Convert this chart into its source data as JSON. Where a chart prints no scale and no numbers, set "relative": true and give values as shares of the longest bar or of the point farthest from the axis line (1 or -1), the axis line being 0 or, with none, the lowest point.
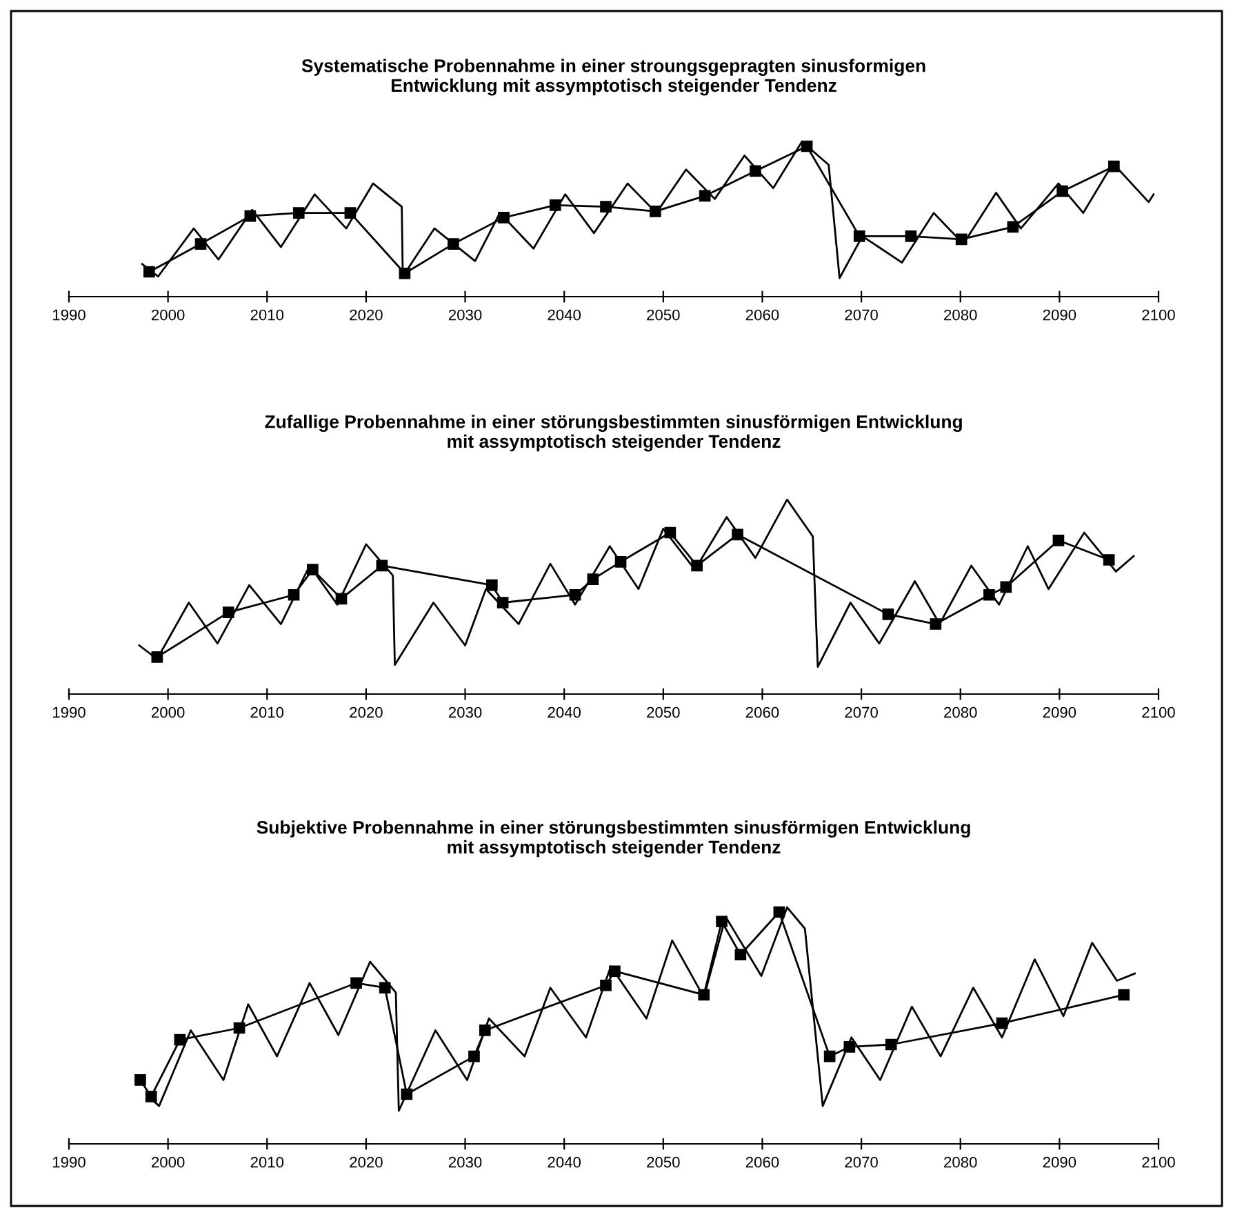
{
  "chart_data": [
    {
      "type": "line",
      "relative": true,
      "title": "Systematische Probennahme in einer stroungsgepragten sinusformigen\nEntwicklung mit assymptotisch steigender Tendenz",
      "xlim": [
        1990,
        2100
      ],
      "xticks": [
        1990,
        2000,
        2010,
        2020,
        2030,
        2040,
        2050,
        2060,
        2070,
        2080,
        2090,
        2100
      ],
      "grid": false,
      "series": [
        {
          "color": "#000000",
          "marker": "none",
          "x": [
            1997.4,
            1999.0,
            2002.6,
            2005.1,
            2008.5,
            2011.4,
            2014.8,
            2018.0,
            2020.7,
            2023.6,
            2023.7,
            2026.9,
            2031.0,
            2033.5,
            2036.9,
            2040.1,
            2043.0,
            2046.4,
            2049.3,
            2052.3,
            2055.2,
            2058.2,
            2061.1,
            2064.0,
            2066.7,
            2067.8,
            2070.1,
            2074.1,
            2077.3,
            2080.3,
            2083.6,
            2086.1,
            2089.9,
            2092.4,
            2095.4,
            2099.0,
            2099.5
          ],
          "values": [
            0.21,
            0.13,
            0.44,
            0.24,
            0.56,
            0.32,
            0.66,
            0.44,
            0.73,
            0.58,
            0.13,
            0.44,
            0.23,
            0.54,
            0.31,
            0.66,
            0.41,
            0.73,
            0.54,
            0.82,
            0.63,
            0.91,
            0.7,
            1.0,
            0.85,
            0.12,
            0.39,
            0.22,
            0.54,
            0.34,
            0.67,
            0.44,
            0.73,
            0.54,
            0.86,
            0.61,
            0.66
          ]
        },
        {
          "color": "#000000",
          "marker": "square",
          "x": [
            1998.1,
            2003.3,
            2008.3,
            2013.2,
            2018.4,
            2023.9,
            2028.8,
            2033.9,
            2039.1,
            2044.2,
            2049.2,
            2054.2,
            2059.3,
            2064.5,
            2069.8,
            2075.0,
            2080.1,
            2085.3,
            2090.3,
            2095.5
          ],
          "values": [
            0.16,
            0.34,
            0.52,
            0.54,
            0.54,
            0.15,
            0.34,
            0.51,
            0.59,
            0.58,
            0.55,
            0.65,
            0.81,
            0.97,
            0.39,
            0.39,
            0.37,
            0.45,
            0.68,
            0.84
          ]
        }
      ]
    },
    {
      "type": "line",
      "relative": true,
      "title": "Zufallige Probennahme in einer störungsbestimmten sinusförmigen Entwicklung\nmit assymptotisch steigender Tendenz",
      "xlim": [
        1990,
        2100
      ],
      "xticks": [
        1990,
        2000,
        2010,
        2020,
        2030,
        2040,
        2050,
        2060,
        2070,
        2080,
        2090,
        2100
      ],
      "grid": false,
      "series": [
        {
          "color": "#000000",
          "marker": "none",
          "x": [
            1997.1,
            1998.9,
            2002.1,
            2005.0,
            2008.2,
            2011.4,
            2014.3,
            2017.1,
            2020.0,
            2022.7,
            2022.9,
            2026.8,
            2030.0,
            2032.1,
            2035.4,
            2038.6,
            2041.1,
            2044.6,
            2047.5,
            2050.0,
            2053.2,
            2056.4,
            2059.3,
            2062.5,
            2065.1,
            2065.6,
            2068.9,
            2071.8,
            2075.4,
            2077.9,
            2081.1,
            2083.9,
            2086.8,
            2088.9,
            2092.5,
            2095.7,
            2097.5
          ],
          "values": [
            0.25,
            0.18,
            0.47,
            0.26,
            0.56,
            0.36,
            0.66,
            0.46,
            0.77,
            0.61,
            0.15,
            0.47,
            0.25,
            0.54,
            0.36,
            0.67,
            0.46,
            0.76,
            0.54,
            0.85,
            0.64,
            0.91,
            0.7,
            1.0,
            0.81,
            0.14,
            0.47,
            0.26,
            0.58,
            0.36,
            0.66,
            0.46,
            0.76,
            0.54,
            0.83,
            0.63,
            0.71
          ]
        },
        {
          "color": "#000000",
          "marker": "square",
          "x": [
            1998.9,
            2006.1,
            2012.7,
            2014.6,
            2017.5,
            2021.6,
            2032.7,
            2033.8,
            2041.1,
            2042.9,
            2045.7,
            2050.7,
            2053.4,
            2057.5,
            2072.7,
            2077.5,
            2082.9,
            2084.6,
            2089.9,
            2095.0
          ],
          "values": [
            0.19,
            0.42,
            0.51,
            0.64,
            0.49,
            0.66,
            0.56,
            0.47,
            0.51,
            0.59,
            0.68,
            0.83,
            0.66,
            0.82,
            0.41,
            0.36,
            0.51,
            0.55,
            0.79,
            0.69
          ]
        }
      ]
    },
    {
      "type": "line",
      "relative": true,
      "title": "Subjektive Probennahme in einer störungsbestimmten sinusförmigen Entwicklung\nmit assymptotisch steigender Tendenz",
      "xlim": [
        1990,
        2100
      ],
      "xticks": [
        1990,
        2000,
        2010,
        2020,
        2030,
        2040,
        2050,
        2060,
        2070,
        2080,
        2090,
        2100
      ],
      "grid": false,
      "series": [
        {
          "color": "#000000",
          "marker": "none",
          "x": [
            1998.3,
            1999.1,
            2002.3,
            2005.6,
            2008.1,
            2011.0,
            2014.3,
            2017.2,
            2020.4,
            2023.0,
            2023.3,
            2027.0,
            2030.2,
            2032.4,
            2036.0,
            2038.6,
            2042.2,
            2044.7,
            2048.3,
            2050.9,
            2054.1,
            2056.3,
            2059.9,
            2062.5,
            2064.3,
            2066.1,
            2069.0,
            2071.9,
            2075.1,
            2078.0,
            2081.3,
            2084.2,
            2087.5,
            2090.4,
            2093.3,
            2095.8,
            2097.6
          ],
          "values": [
            0.19,
            0.16,
            0.48,
            0.27,
            0.59,
            0.37,
            0.68,
            0.46,
            0.77,
            0.64,
            0.14,
            0.48,
            0.27,
            0.53,
            0.37,
            0.66,
            0.45,
            0.75,
            0.53,
            0.86,
            0.62,
            0.96,
            0.71,
            1.0,
            0.91,
            0.16,
            0.45,
            0.27,
            0.58,
            0.37,
            0.66,
            0.45,
            0.78,
            0.54,
            0.85,
            0.69,
            0.72
          ]
        },
        {
          "color": "#000000",
          "marker": "square",
          "x": [
            1997.2,
            1998.3,
            2001.2,
            2007.2,
            2019.0,
            2021.9,
            2024.1,
            2030.9,
            2032.0,
            2044.2,
            2045.1,
            2054.1,
            2055.9,
            2057.8,
            2061.7,
            2066.8,
            2068.8,
            2073.0,
            2084.2,
            2096.5
          ],
          "values": [
            0.27,
            0.2,
            0.44,
            0.49,
            0.68,
            0.66,
            0.21,
            0.37,
            0.48,
            0.67,
            0.73,
            0.63,
            0.94,
            0.8,
            0.98,
            0.37,
            0.41,
            0.42,
            0.51,
            0.63
          ]
        }
      ]
    }
  ]
}
